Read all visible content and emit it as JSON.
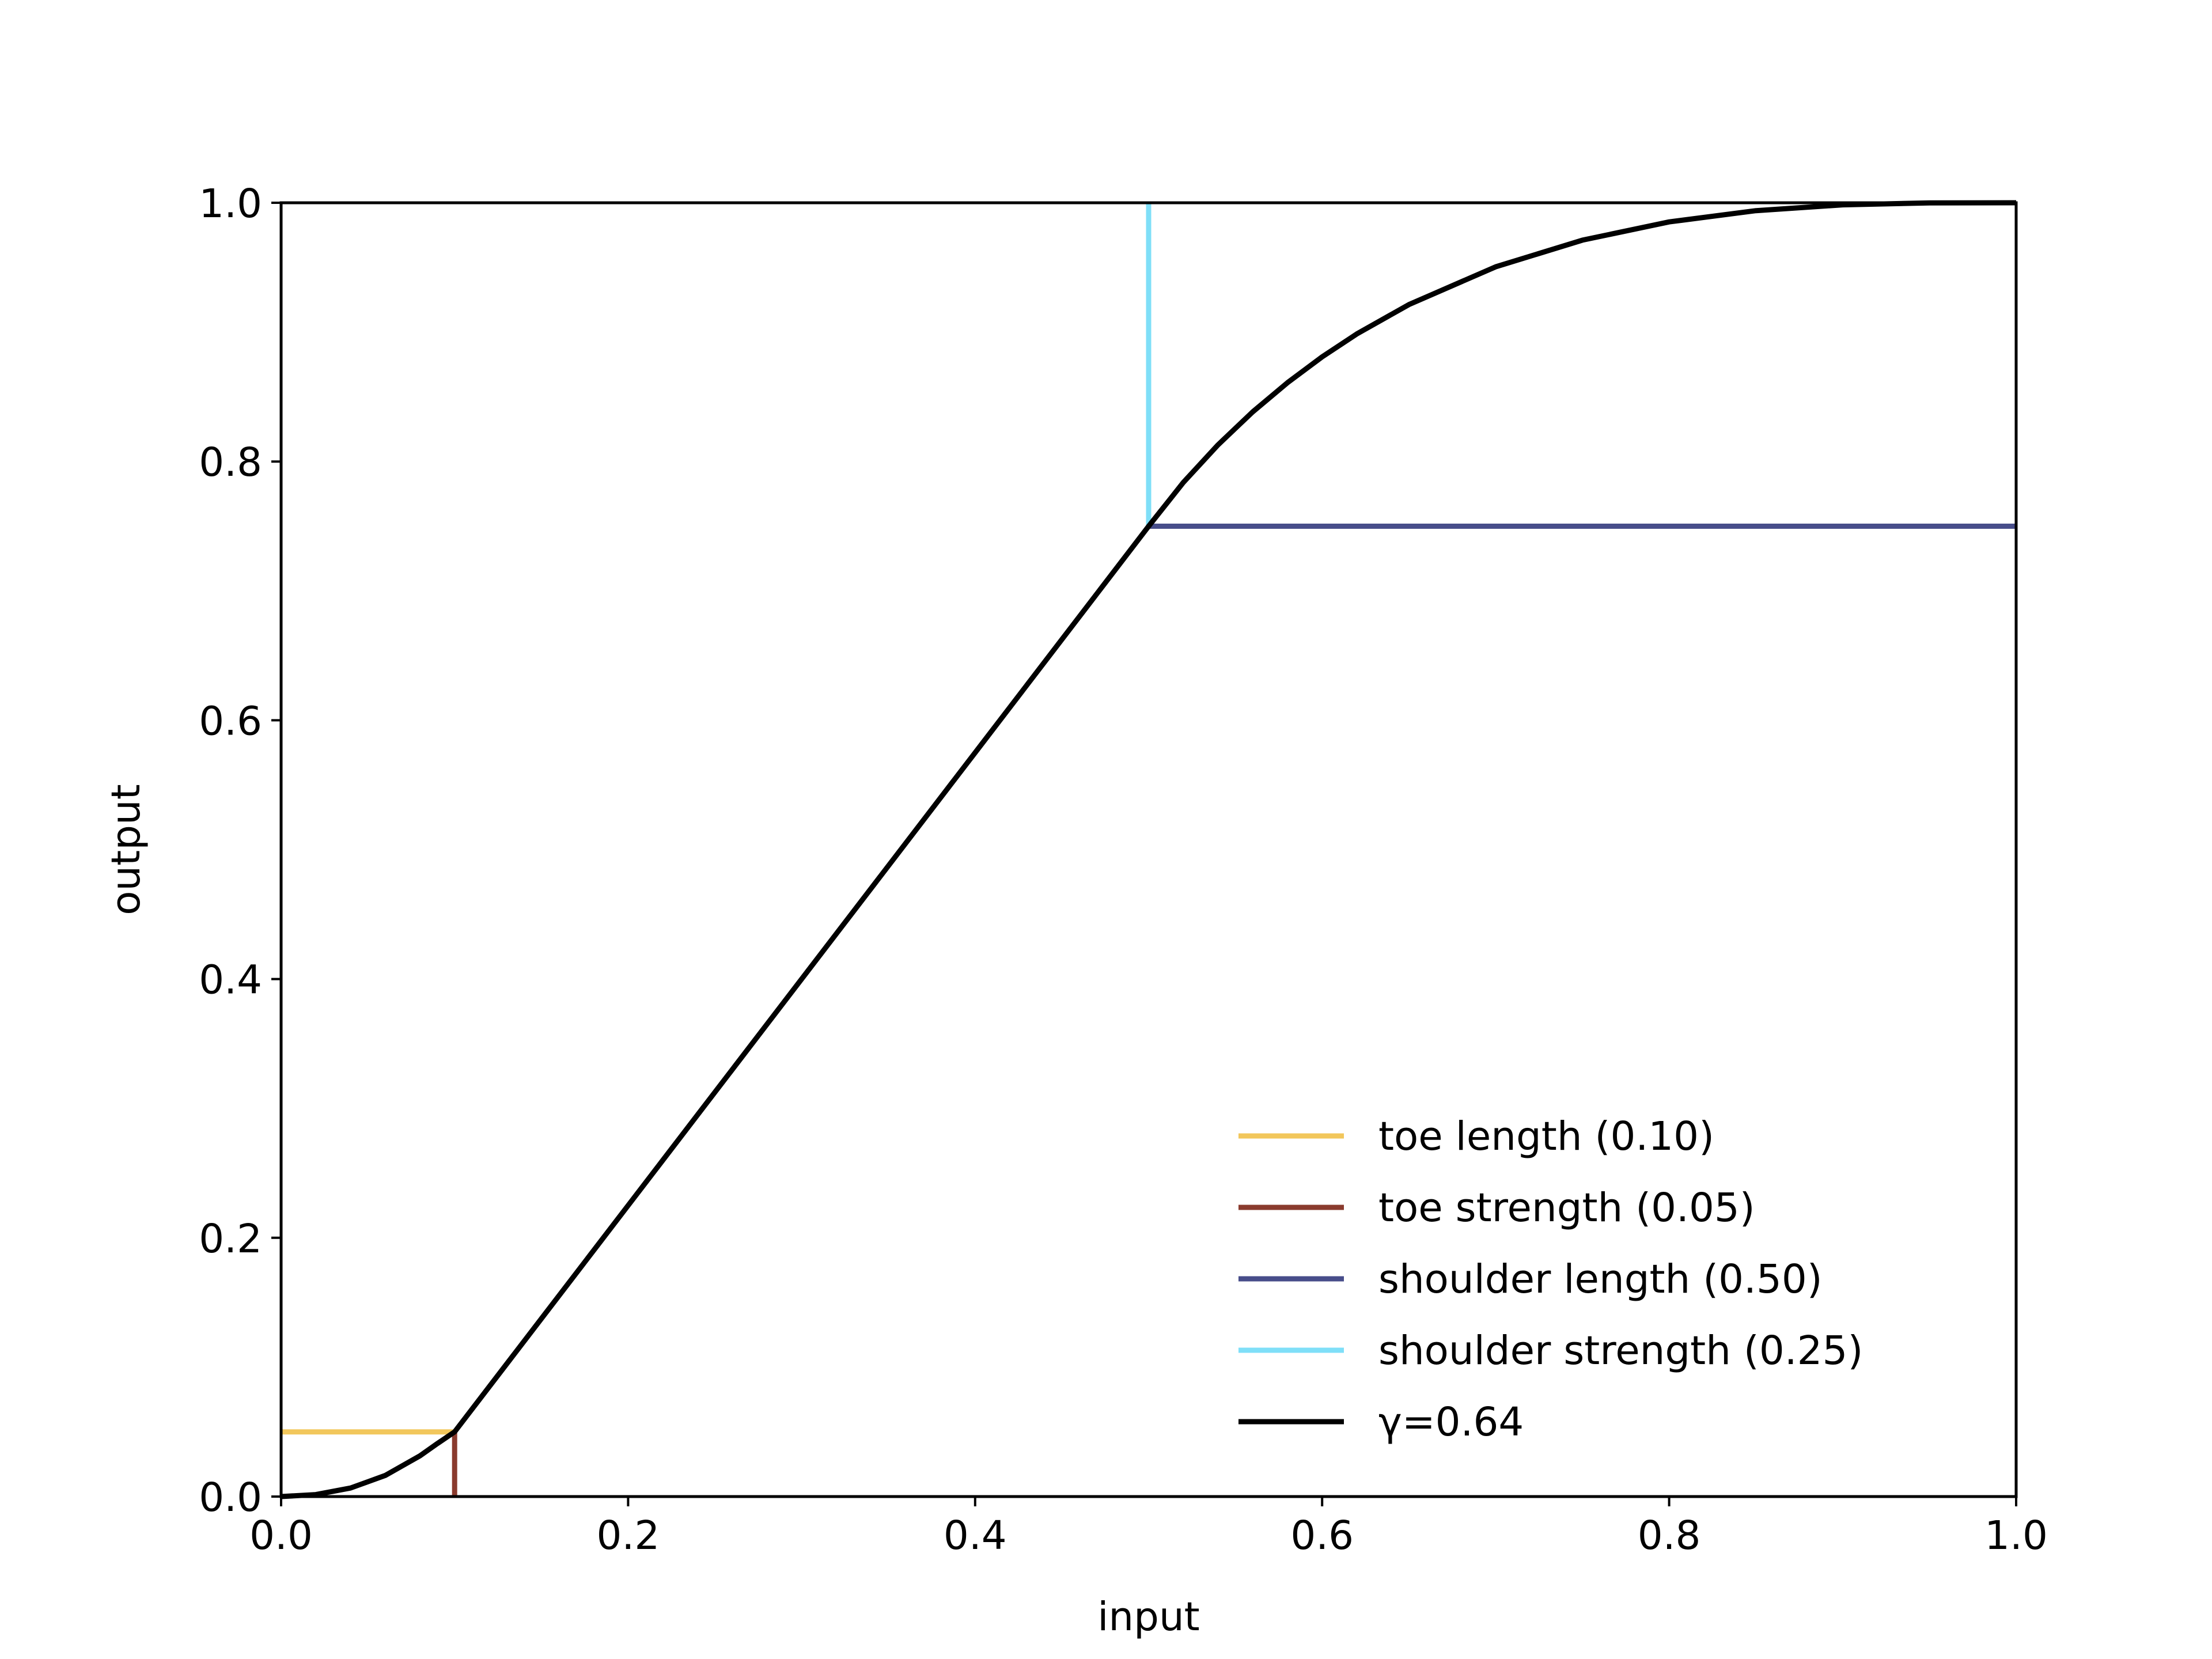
{
  "chart_data": {
    "type": "line",
    "xlabel": "input",
    "ylabel": "output",
    "xlim": [
      0.0,
      1.0
    ],
    "ylim": [
      0.0,
      1.0
    ],
    "xticks": [
      "0.0",
      "0.2",
      "0.4",
      "0.6",
      "0.8",
      "1.0"
    ],
    "yticks": [
      "0.0",
      "0.2",
      "0.4",
      "0.6",
      "0.8",
      "1.0"
    ],
    "grid": false,
    "legend_position": "lower-right",
    "series": [
      {
        "name": "toe length (0.10)",
        "color": "#f2c75c",
        "x": [
          0.0,
          0.1
        ],
        "y": [
          0.05,
          0.05
        ]
      },
      {
        "name": "toe strength (0.05)",
        "color": "#8a3b2e",
        "x": [
          0.1,
          0.1
        ],
        "y": [
          0.0,
          0.05
        ]
      },
      {
        "name": "shoulder length (0.50)",
        "color": "#474d8a",
        "x": [
          0.5,
          1.0
        ],
        "y": [
          0.75,
          0.75
        ]
      },
      {
        "name": "shoulder strength (0.25)",
        "color": "#7fdff8",
        "x": [
          0.5,
          0.5
        ],
        "y": [
          0.75,
          1.0
        ]
      },
      {
        "name": "γ=0.64",
        "color": "#000000",
        "x": [
          0.0,
          0.02,
          0.04,
          0.06,
          0.08,
          0.09,
          0.1,
          0.2,
          0.3,
          0.4,
          0.5,
          0.52,
          0.54,
          0.56,
          0.58,
          0.6,
          0.62,
          0.65,
          0.7,
          0.75,
          0.8,
          0.85,
          0.9,
          0.95,
          1.0
        ],
        "y": [
          0.0,
          0.0015,
          0.0066,
          0.0163,
          0.0315,
          0.0409,
          0.05,
          0.225,
          0.4,
          0.575,
          0.75,
          0.7838,
          0.8129,
          0.8384,
          0.8609,
          0.8809,
          0.8986,
          0.9213,
          0.9505,
          0.9711,
          0.9852,
          0.9939,
          0.9984,
          0.9999,
          1.0
        ]
      }
    ]
  }
}
